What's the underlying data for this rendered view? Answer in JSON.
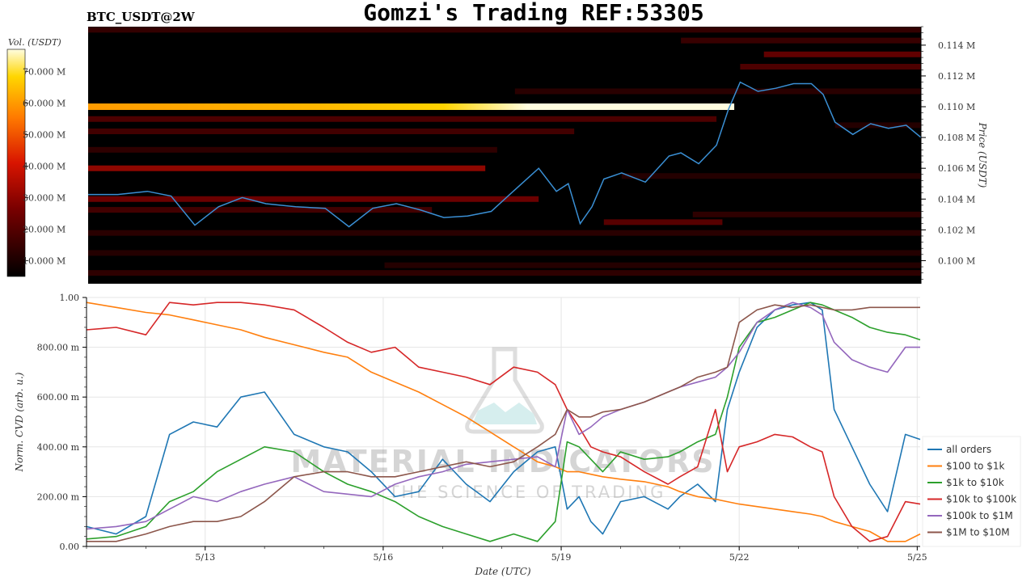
{
  "header": {
    "symbol": "BTC_USDT@2W",
    "title": "Gomzi's Trading REF:53305"
  },
  "watermark": {
    "line1": "MATERIAL INDICATORS",
    "line2": "THE SCIENCE OF TRADING"
  },
  "chart_data": [
    {
      "type": "heatmap",
      "name": "order-book-heatmap",
      "colorbar_label": "Vol. (USDT)",
      "colorbar_ticks": [
        "70.000 M",
        "60.000 M",
        "50.000 M",
        "40.000 M",
        "30.000 M",
        "20.000 M",
        "10.000 M"
      ],
      "colorbar_tick_values": [
        70,
        60,
        50,
        40,
        30,
        20,
        10
      ],
      "colorbar_range": [
        5,
        77
      ],
      "ylabel": "Price (USDT)",
      "y_ticks": [
        "0.114 M",
        "0.112 M",
        "0.110 M",
        "0.108 M",
        "0.106 M",
        "0.104 M",
        "0.102 M",
        "0.100 M"
      ],
      "y_tick_values": [
        114000,
        112000,
        110000,
        108000,
        106000,
        104000,
        102000,
        100000
      ],
      "ylim": [
        98500,
        115200
      ],
      "xlim_days": [
        11.0,
        25.05
      ],
      "bands": [
        {
          "price": 110000,
          "from": 11.0,
          "to": 21.9,
          "level": 60,
          "peak": 77
        },
        {
          "price": 106000,
          "from": 11.0,
          "to": 17.7,
          "level": 32
        },
        {
          "price": 108400,
          "from": 11.0,
          "to": 19.2,
          "level": 18
        },
        {
          "price": 109200,
          "from": 11.0,
          "to": 21.6,
          "level": 20
        },
        {
          "price": 104000,
          "from": 11.0,
          "to": 18.6,
          "level": 26
        },
        {
          "price": 107200,
          "from": 11.0,
          "to": 17.9,
          "level": 14
        },
        {
          "price": 103300,
          "from": 11.0,
          "to": 16.8,
          "level": 18
        },
        {
          "price": 101800,
          "from": 11.0,
          "to": 25.05,
          "level": 13
        },
        {
          "price": 100500,
          "from": 11.0,
          "to": 25.05,
          "level": 12
        },
        {
          "price": 99200,
          "from": 11.0,
          "to": 25.05,
          "level": 14
        },
        {
          "price": 99700,
          "from": 16.0,
          "to": 25.05,
          "level": 12
        },
        {
          "price": 102500,
          "from": 19.7,
          "to": 21.7,
          "level": 22
        },
        {
          "price": 103000,
          "from": 21.2,
          "to": 25.05,
          "level": 14
        },
        {
          "price": 105500,
          "from": 20.0,
          "to": 25.05,
          "level": 12
        },
        {
          "price": 111000,
          "from": 18.2,
          "to": 25.05,
          "level": 13
        },
        {
          "price": 112600,
          "from": 22.0,
          "to": 25.05,
          "level": 20
        },
        {
          "price": 113400,
          "from": 22.4,
          "to": 25.05,
          "level": 24
        },
        {
          "price": 114300,
          "from": 21.0,
          "to": 25.05,
          "level": 16
        },
        {
          "price": 115000,
          "from": 11.0,
          "to": 25.05,
          "level": 15
        },
        {
          "price": 108800,
          "from": 23.6,
          "to": 25.05,
          "level": 12
        }
      ],
      "price_line": {
        "name": "BTC price",
        "x_days": [
          11.0,
          11.5,
          12.0,
          12.4,
          12.8,
          13.2,
          13.6,
          14.0,
          14.5,
          15.0,
          15.4,
          15.8,
          16.2,
          16.6,
          17.0,
          17.4,
          17.8,
          18.2,
          18.6,
          18.9,
          19.1,
          19.3,
          19.5,
          19.7,
          20.0,
          20.4,
          20.8,
          21.0,
          21.3,
          21.6,
          21.8,
          22.0,
          22.3,
          22.6,
          22.9,
          23.2,
          23.4,
          23.6,
          23.9,
          24.2,
          24.5,
          24.8,
          25.05
        ],
        "values": [
          104300,
          104300,
          104500,
          104200,
          102300,
          103500,
          104100,
          103700,
          103500,
          103400,
          102200,
          103400,
          103700,
          103300,
          102800,
          102900,
          103200,
          104600,
          106000,
          104500,
          105000,
          102400,
          103500,
          105300,
          105700,
          105100,
          106800,
          107000,
          106300,
          107500,
          109800,
          111600,
          111000,
          111200,
          111500,
          111500,
          110800,
          109000,
          108200,
          108900,
          108600,
          108800,
          108000
        ]
      }
    },
    {
      "type": "line",
      "name": "normalized-cvd",
      "xlabel": "Date (UTC)",
      "ylabel": "Norm. CVD (arb. u.)",
      "ylim": [
        0,
        1
      ],
      "xlim_days": [
        11.0,
        25.05
      ],
      "x_ticks": [
        "5/13",
        "5/16",
        "5/19",
        "5/22",
        "5/25"
      ],
      "x_tick_days": [
        13,
        16,
        19,
        22,
        25
      ],
      "y_ticks": [
        "1.00",
        "800.00 m",
        "600.00 m",
        "400.00 m",
        "200.00 m",
        "0.00"
      ],
      "y_tick_values": [
        1.0,
        0.8,
        0.6,
        0.4,
        0.2,
        0.0
      ],
      "x_days": [
        11.0,
        11.5,
        12.0,
        12.4,
        12.8,
        13.2,
        13.6,
        14.0,
        14.5,
        15.0,
        15.4,
        15.8,
        16.2,
        16.6,
        17.0,
        17.4,
        17.8,
        18.2,
        18.6,
        18.9,
        19.1,
        19.3,
        19.5,
        19.7,
        20.0,
        20.4,
        20.8,
        21.0,
        21.3,
        21.6,
        21.8,
        22.0,
        22.3,
        22.6,
        22.9,
        23.2,
        23.4,
        23.6,
        23.9,
        24.2,
        24.5,
        24.8,
        25.05
      ],
      "series": [
        {
          "name": "all orders",
          "color": "#1f77b4",
          "values": [
            0.08,
            0.05,
            0.12,
            0.45,
            0.5,
            0.48,
            0.6,
            0.62,
            0.45,
            0.4,
            0.38,
            0.3,
            0.2,
            0.22,
            0.35,
            0.25,
            0.18,
            0.3,
            0.38,
            0.4,
            0.15,
            0.2,
            0.1,
            0.05,
            0.18,
            0.2,
            0.15,
            0.2,
            0.25,
            0.18,
            0.55,
            0.7,
            0.88,
            0.95,
            0.97,
            0.98,
            0.95,
            0.55,
            0.4,
            0.25,
            0.14,
            0.45,
            0.43
          ]
        },
        {
          "name": "$100 to $1k",
          "color": "#ff7f0e",
          "values": [
            0.98,
            0.96,
            0.94,
            0.93,
            0.91,
            0.89,
            0.87,
            0.84,
            0.81,
            0.78,
            0.76,
            0.7,
            0.66,
            0.62,
            0.57,
            0.52,
            0.46,
            0.4,
            0.34,
            0.32,
            0.3,
            0.3,
            0.29,
            0.28,
            0.27,
            0.26,
            0.24,
            0.22,
            0.2,
            0.19,
            0.18,
            0.17,
            0.16,
            0.15,
            0.14,
            0.13,
            0.12,
            0.1,
            0.08,
            0.06,
            0.02,
            0.02,
            0.05
          ]
        },
        {
          "name": "$1k to $10k",
          "color": "#2ca02c",
          "values": [
            0.03,
            0.04,
            0.08,
            0.18,
            0.22,
            0.3,
            0.35,
            0.4,
            0.38,
            0.3,
            0.25,
            0.22,
            0.18,
            0.12,
            0.08,
            0.05,
            0.02,
            0.05,
            0.02,
            0.1,
            0.42,
            0.4,
            0.35,
            0.3,
            0.38,
            0.35,
            0.36,
            0.38,
            0.42,
            0.45,
            0.6,
            0.8,
            0.9,
            0.92,
            0.95,
            0.98,
            0.97,
            0.95,
            0.92,
            0.88,
            0.86,
            0.85,
            0.83
          ]
        },
        {
          "name": "$10k to $100k",
          "color": "#d62728",
          "values": [
            0.87,
            0.88,
            0.85,
            0.98,
            0.97,
            0.98,
            0.98,
            0.97,
            0.95,
            0.88,
            0.82,
            0.78,
            0.8,
            0.72,
            0.7,
            0.68,
            0.65,
            0.72,
            0.7,
            0.65,
            0.55,
            0.48,
            0.4,
            0.38,
            0.36,
            0.3,
            0.25,
            0.28,
            0.32,
            0.55,
            0.3,
            0.4,
            0.42,
            0.45,
            0.44,
            0.4,
            0.38,
            0.2,
            0.08,
            0.02,
            0.04,
            0.18,
            0.17
          ]
        },
        {
          "name": "$100k to $1M",
          "color": "#9467bd",
          "values": [
            0.07,
            0.08,
            0.1,
            0.15,
            0.2,
            0.18,
            0.22,
            0.25,
            0.28,
            0.22,
            0.21,
            0.2,
            0.25,
            0.28,
            0.3,
            0.33,
            0.34,
            0.35,
            0.36,
            0.32,
            0.55,
            0.45,
            0.48,
            0.52,
            0.55,
            0.58,
            0.62,
            0.64,
            0.66,
            0.68,
            0.72,
            0.78,
            0.9,
            0.95,
            0.98,
            0.96,
            0.93,
            0.82,
            0.75,
            0.72,
            0.7,
            0.8,
            0.8
          ]
        },
        {
          "name": "$1M to $10M",
          "color": "#8c564b",
          "values": [
            0.02,
            0.02,
            0.05,
            0.08,
            0.1,
            0.1,
            0.12,
            0.18,
            0.28,
            0.3,
            0.3,
            0.28,
            0.28,
            0.3,
            0.32,
            0.34,
            0.32,
            0.34,
            0.4,
            0.45,
            0.55,
            0.52,
            0.52,
            0.54,
            0.55,
            0.58,
            0.62,
            0.64,
            0.68,
            0.7,
            0.72,
            0.9,
            0.95,
            0.97,
            0.96,
            0.97,
            0.96,
            0.95,
            0.95,
            0.96,
            0.96,
            0.96,
            0.96
          ]
        }
      ],
      "legend_position": "bottom-right"
    }
  ]
}
